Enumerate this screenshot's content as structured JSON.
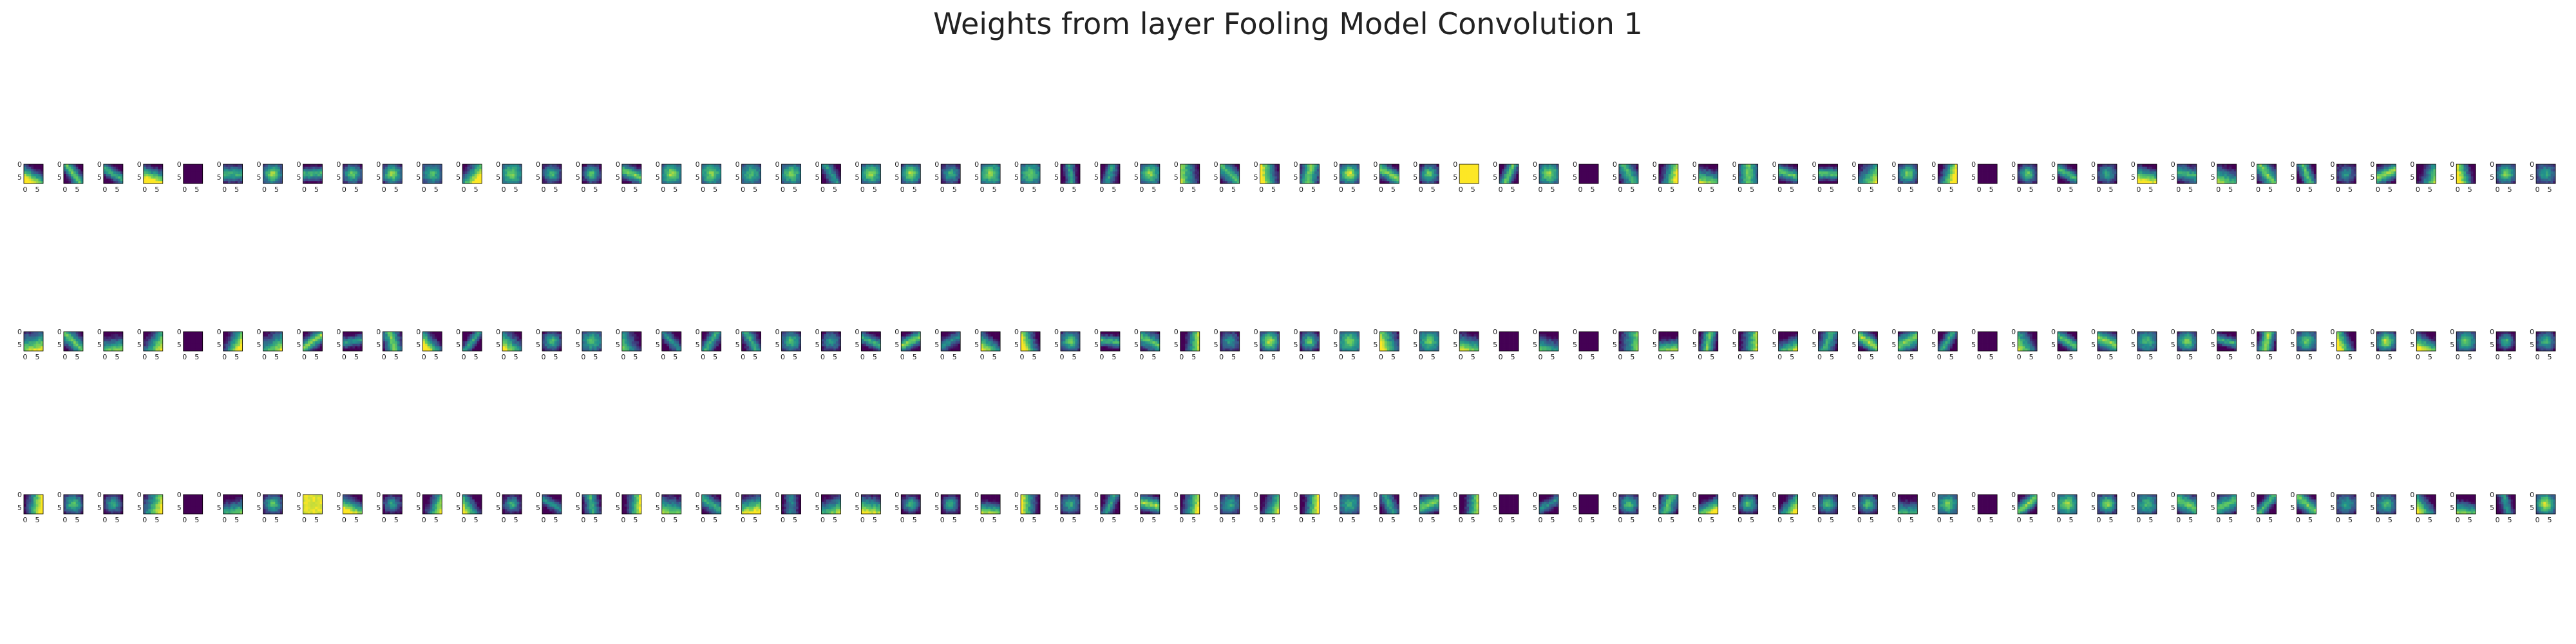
{
  "title": "Weights from layer Fooling Model Convolution 1",
  "chart_data": {
    "type": "heatmap",
    "title": "Weights from layer Fooling Model Convolution 1",
    "rows": 3,
    "cols": 64,
    "kernel_size": 8,
    "colormap": "viridis",
    "colormap_stops": [
      "#440154",
      "#3b528b",
      "#21918c",
      "#5ec962",
      "#fde725"
    ],
    "x_ticks": [
      "0",
      "5"
    ],
    "y_ticks": [
      "0",
      "5"
    ],
    "uniform_dark_tiles": [
      [
        0,
        4
      ],
      [
        0,
        39
      ],
      [
        0,
        49
      ],
      [
        1,
        4
      ],
      [
        1,
        37
      ],
      [
        1,
        39
      ],
      [
        1,
        49
      ],
      [
        2,
        4
      ],
      [
        2,
        37
      ],
      [
        2,
        39
      ],
      [
        2,
        49
      ]
    ],
    "uniform_bright_tiles": [
      [
        0,
        36
      ]
    ],
    "mostly_bright_tiles": [
      [
        2,
        7
      ]
    ]
  }
}
